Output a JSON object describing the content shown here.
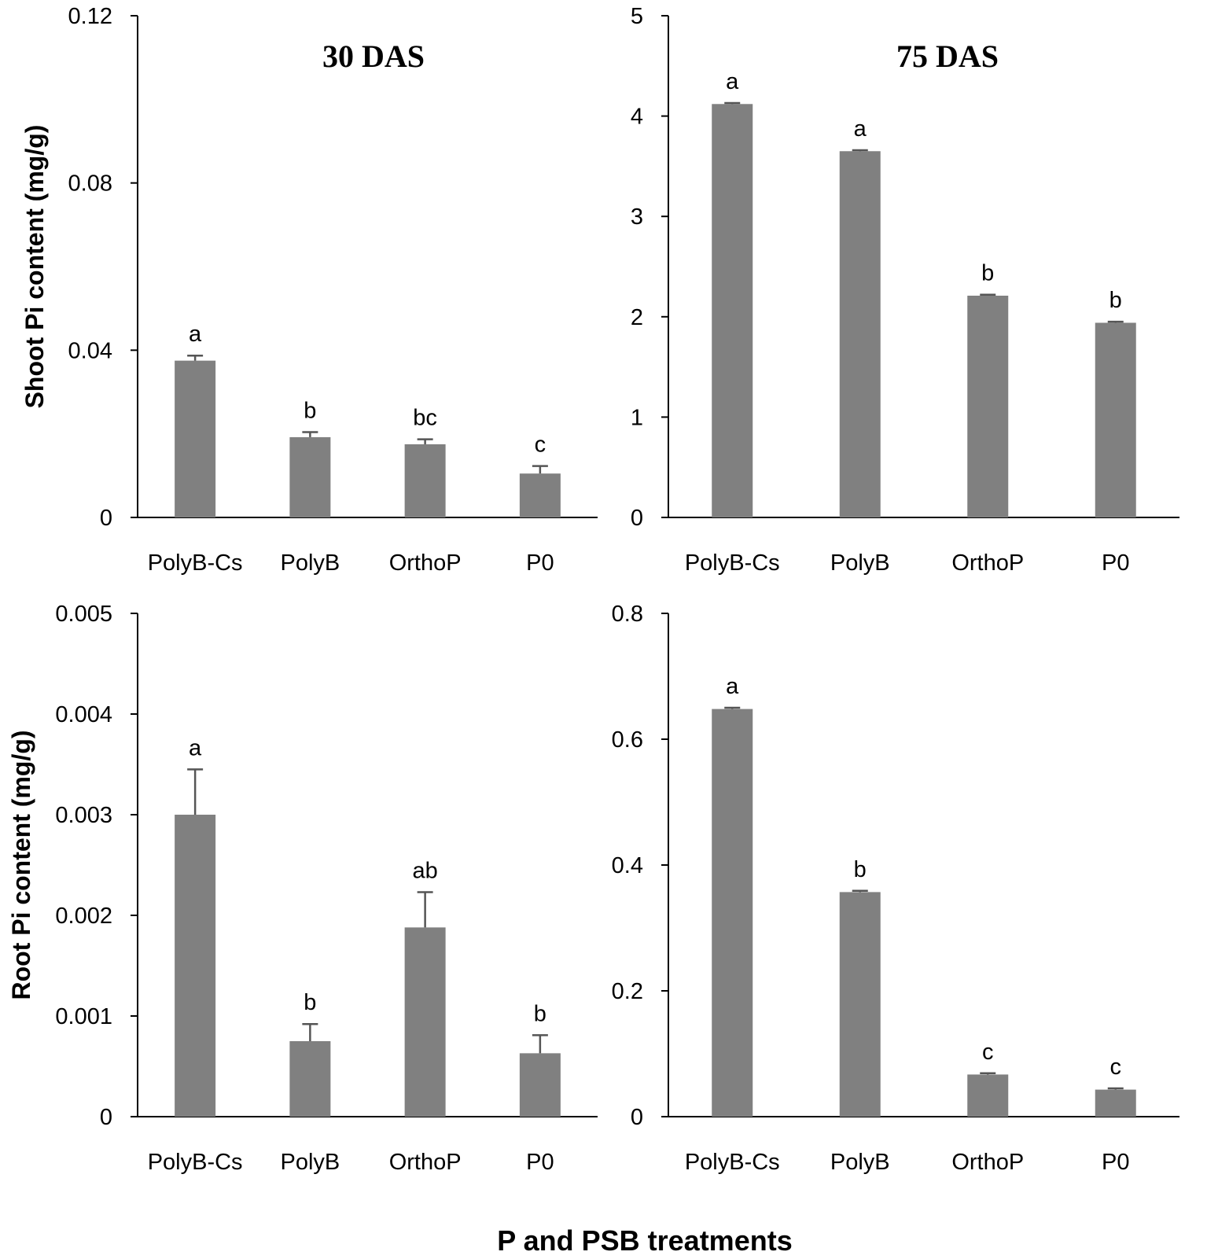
{
  "chart_data": [
    {
      "type": "bar",
      "title": "30 DAS",
      "ylabel": "Shoot Pi content (mg/g)",
      "xlabel": "",
      "categories": [
        "PolyB-Cs",
        "PolyB",
        "OrthoP",
        "P0"
      ],
      "values": [
        0.0375,
        0.0192,
        0.0175,
        0.0105
      ],
      "errors": [
        0.0012,
        0.0012,
        0.0012,
        0.0018
      ],
      "significance": [
        "a",
        "b",
        "bc",
        "c"
      ],
      "ylim": [
        0,
        0.12
      ],
      "ticks": [
        0,
        0.04,
        0.08,
        0.12
      ],
      "tick_labels": [
        "0",
        "0.04",
        "0.08",
        "0.12"
      ],
      "bar_color": "#808080"
    },
    {
      "type": "bar",
      "title": "75 DAS",
      "ylabel": "",
      "xlabel": "",
      "categories": [
        "PolyB-Cs",
        "PolyB",
        "OrthoP",
        "P0"
      ],
      "values": [
        4.12,
        3.65,
        2.21,
        1.94
      ],
      "errors": [
        0.01,
        0.01,
        0.01,
        0.01
      ],
      "significance": [
        "a",
        "a",
        "b",
        "b"
      ],
      "ylim": [
        0,
        5
      ],
      "ticks": [
        0,
        1,
        2,
        3,
        4,
        5
      ],
      "tick_labels": [
        "0",
        "1",
        "2",
        "3",
        "4",
        "5"
      ],
      "bar_color": "#808080"
    },
    {
      "type": "bar",
      "title": "",
      "ylabel": "Root Pi content (mg/g)",
      "xlabel": "",
      "categories": [
        "PolyB-Cs",
        "PolyB",
        "OrthoP",
        "P0"
      ],
      "values": [
        0.003,
        0.00075,
        0.00188,
        0.00063
      ],
      "errors": [
        0.00045,
        0.00017,
        0.00035,
        0.00018
      ],
      "significance": [
        "a",
        "b",
        "ab",
        "b"
      ],
      "ylim": [
        0,
        0.005
      ],
      "ticks": [
        0,
        0.001,
        0.002,
        0.003,
        0.004,
        0.005
      ],
      "tick_labels": [
        "0",
        "0.001",
        "0.002",
        "0.003",
        "0.004",
        "0.005"
      ],
      "bar_color": "#808080"
    },
    {
      "type": "bar",
      "title": "",
      "ylabel": "",
      "xlabel": "",
      "categories": [
        "PolyB-Cs",
        "PolyB",
        "OrthoP",
        "P0"
      ],
      "values": [
        0.648,
        0.357,
        0.067,
        0.043
      ],
      "errors": [
        0.002,
        0.002,
        0.002,
        0.002
      ],
      "significance": [
        "a",
        "b",
        "c",
        "c"
      ],
      "ylim": [
        0,
        0.8
      ],
      "ticks": [
        0,
        0.2,
        0.4,
        0.6,
        0.8
      ],
      "tick_labels": [
        "0",
        "0.2",
        "0.4",
        "0.6",
        "0.8"
      ],
      "bar_color": "#808080"
    }
  ],
  "figure": {
    "shared_xlabel": "P and PSB treatments"
  }
}
